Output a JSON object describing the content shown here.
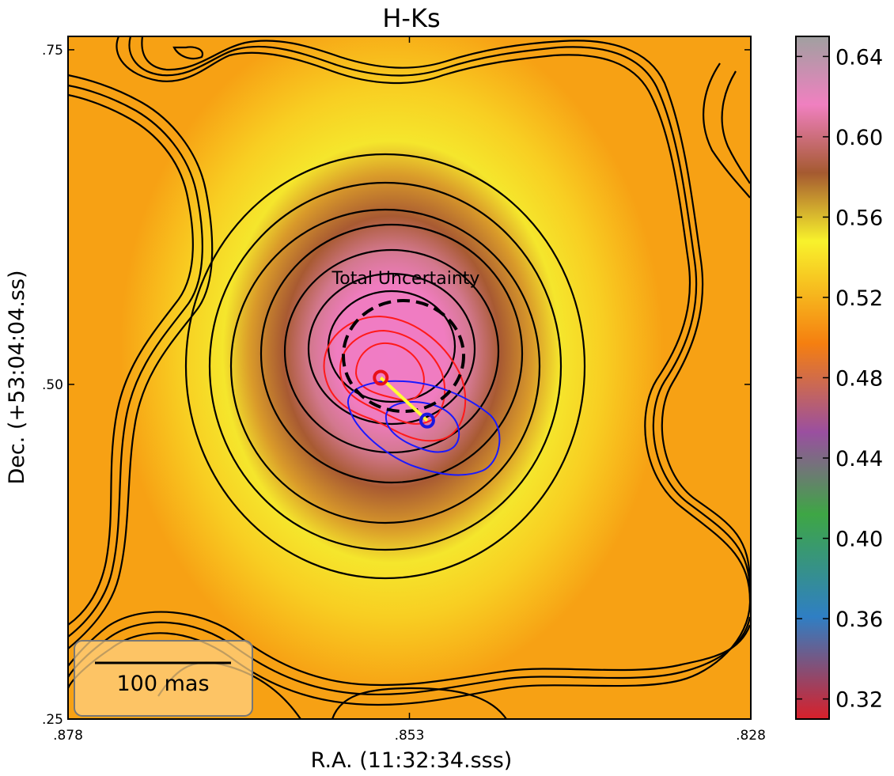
{
  "chart_data": {
    "type": "heatmap",
    "title": "H-Ks",
    "xlabel": "R.A. (11:32:34.sss)",
    "ylabel": "Dec. (+53:04:04.ss)",
    "x_ticks": [
      ".878",
      ".853",
      ".828"
    ],
    "y_ticks": [
      ".75",
      ".50",
      ".25"
    ],
    "xlim": [
      0.878,
      0.828
    ],
    "ylim": [
      0.25,
      0.76
    ],
    "colorbar": {
      "ticks": [
        "0.32",
        "0.36",
        "0.40",
        "0.44",
        "0.48",
        "0.52",
        "0.56",
        "0.60",
        "0.64"
      ],
      "range": [
        0.31,
        0.65
      ],
      "colors": [
        "#d8202a",
        "#2f7fc4",
        "#3ea645",
        "#9a4fa0",
        "#f57f10",
        "#f8f22c",
        "#a55a30",
        "#f080c0",
        "#a0a0a0"
      ]
    },
    "annotation": "Total Uncertainty",
    "scalebar_label": "100 mas",
    "markers": [
      {
        "name": "red",
        "x": 0.8551,
        "y": 0.505,
        "color": "#e8101a"
      },
      {
        "name": "blue",
        "x": 0.8517,
        "y": 0.473,
        "color": "#1a18e0"
      }
    ],
    "contour_colors": {
      "black": "#000000",
      "red": "#ff1a1a",
      "blue": "#1a1aff",
      "link": "#ffff33"
    }
  }
}
